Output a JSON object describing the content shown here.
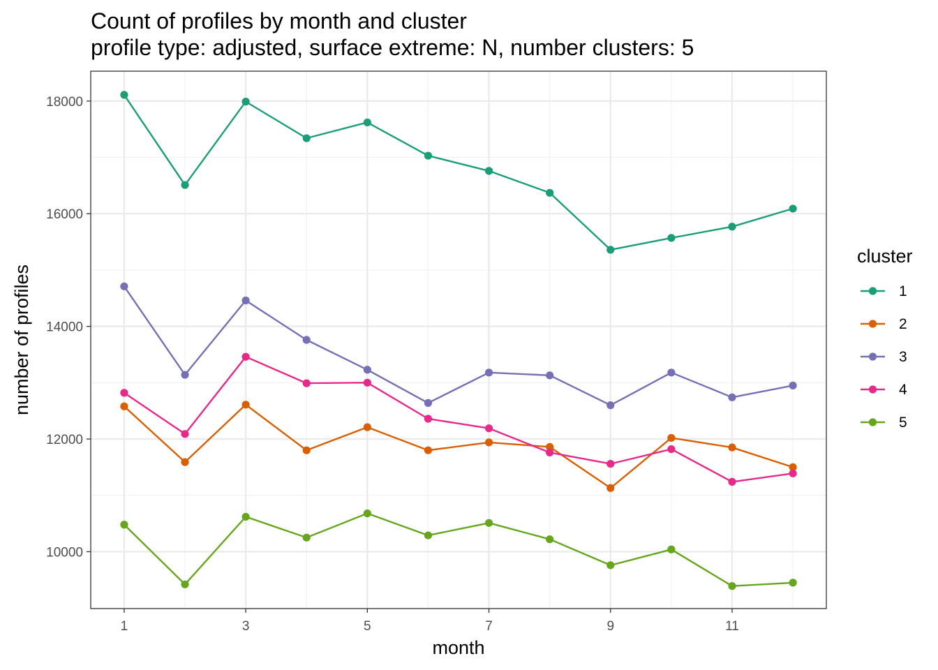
{
  "chart_data": {
    "type": "line",
    "title": "Count of profiles by month and cluster",
    "subtitle": "profile type: adjusted, surface extreme: N, number clusters: 5",
    "xlabel": "month",
    "ylabel": "number of profiles",
    "x": [
      1,
      2,
      3,
      4,
      5,
      6,
      7,
      8,
      9,
      10,
      11,
      12
    ],
    "x_ticks": [
      1,
      3,
      5,
      7,
      9,
      11
    ],
    "y_ticks": [
      10000,
      12000,
      14000,
      16000,
      18000
    ],
    "xlim": [
      0.45,
      12.55
    ],
    "ylim": [
      8990,
      18530
    ],
    "grid": true,
    "legend": {
      "title": "cluster",
      "placement": "right"
    },
    "series": [
      {
        "name": "1",
        "color": "#1b9e77",
        "values": [
          18110,
          16510,
          17990,
          17340,
          17620,
          17030,
          16760,
          16370,
          15360,
          15570,
          15770,
          16090
        ]
      },
      {
        "name": "2",
        "color": "#d95f02",
        "values": [
          12580,
          11590,
          12610,
          11800,
          12210,
          11800,
          11940,
          11860,
          11130,
          12020,
          11850,
          11500
        ]
      },
      {
        "name": "3",
        "color": "#7570b3",
        "values": [
          14710,
          13140,
          14460,
          13760,
          13230,
          12640,
          13180,
          13130,
          12600,
          13180,
          12740,
          12950
        ]
      },
      {
        "name": "4",
        "color": "#e7298a",
        "values": [
          12820,
          12090,
          13460,
          12990,
          13000,
          12360,
          12190,
          11760,
          11560,
          11820,
          11240,
          11390
        ]
      },
      {
        "name": "5",
        "color": "#66a61e",
        "values": [
          10480,
          9420,
          10620,
          10250,
          10680,
          10290,
          10510,
          10220,
          9760,
          10040,
          9390,
          9450
        ]
      }
    ]
  }
}
